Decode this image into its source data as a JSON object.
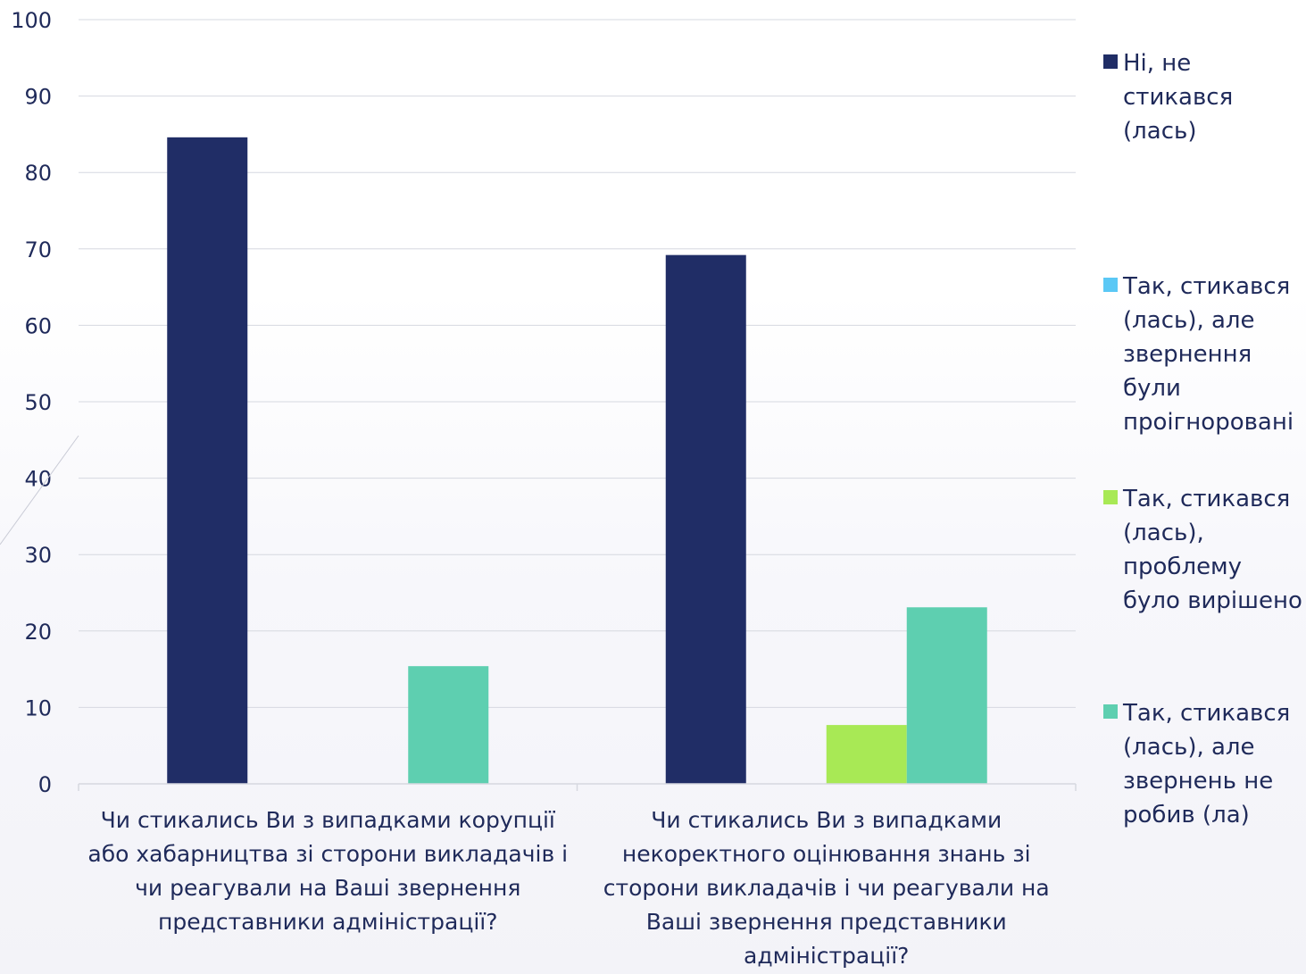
{
  "chart_data": {
    "type": "bar",
    "categories": [
      "Чи стикались Ви з випадками корупції або хабарництва зі сторони викладачів і чи реагували на Ваші звернення представники адміністрації?",
      "Чи стикались Ви з випадками некоректного оцінювання знань зі сторони викладачів і чи реагували на Ваші звернення представники адміністрації?"
    ],
    "series": [
      {
        "name": "Ні, не стикався (лась)",
        "color": "#202d66",
        "values": [
          84.6,
          69.2
        ]
      },
      {
        "name": "Так, стикався (лась), але звернення були проігноровані",
        "color": "#5bc8f5",
        "values": [
          0,
          0
        ]
      },
      {
        "name": "Так, стикався (лась), проблему було вирішено",
        "color": "#a8e955",
        "values": [
          0,
          7.7
        ]
      },
      {
        "name": "Так, стикався (лась), але звернень не робив (ла)",
        "color": "#5ecfb0",
        "values": [
          15.4,
          23.1
        ]
      }
    ],
    "ylim": [
      0,
      100
    ],
    "yticks": [
      "0",
      "10",
      "20",
      "30",
      "40",
      "50",
      "60",
      "70",
      "80",
      "90",
      "100"
    ],
    "grid": true,
    "legend_position": "right"
  }
}
